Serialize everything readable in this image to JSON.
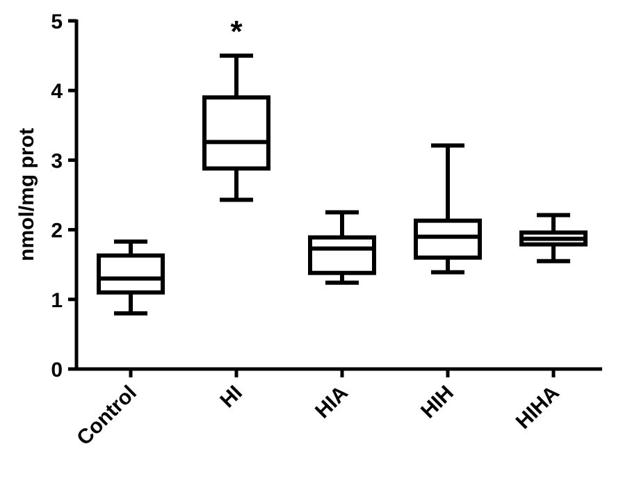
{
  "chart_data": {
    "type": "box",
    "title": "",
    "xlabel": "",
    "ylabel": "nmol/mg prot",
    "ylim": [
      0,
      5
    ],
    "yticks": [
      "0",
      "1",
      "2",
      "3",
      "4",
      "5"
    ],
    "grid": false,
    "legend": "none",
    "categories": [
      "Control",
      "HI",
      "HIA",
      "HIH",
      "HIHA"
    ],
    "boxes": [
      {
        "category": "Control",
        "min": 0.8,
        "q1": 1.1,
        "median": 1.3,
        "q3": 1.63,
        "max": 1.83,
        "annotation": ""
      },
      {
        "category": "HI",
        "min": 2.43,
        "q1": 2.88,
        "median": 3.26,
        "q3": 3.9,
        "max": 4.5,
        "annotation": "*"
      },
      {
        "category": "HIA",
        "min": 1.24,
        "q1": 1.38,
        "median": 1.73,
        "q3": 1.89,
        "max": 2.25,
        "annotation": ""
      },
      {
        "category": "HIH",
        "min": 1.39,
        "q1": 1.6,
        "median": 1.9,
        "q3": 2.13,
        "max": 3.21,
        "annotation": ""
      },
      {
        "category": "HIHA",
        "min": 1.55,
        "q1": 1.79,
        "median": 1.87,
        "q3": 1.96,
        "max": 2.21,
        "annotation": ""
      }
    ],
    "colors": {
      "stroke": "#000000",
      "fill": "#ffffff"
    }
  }
}
